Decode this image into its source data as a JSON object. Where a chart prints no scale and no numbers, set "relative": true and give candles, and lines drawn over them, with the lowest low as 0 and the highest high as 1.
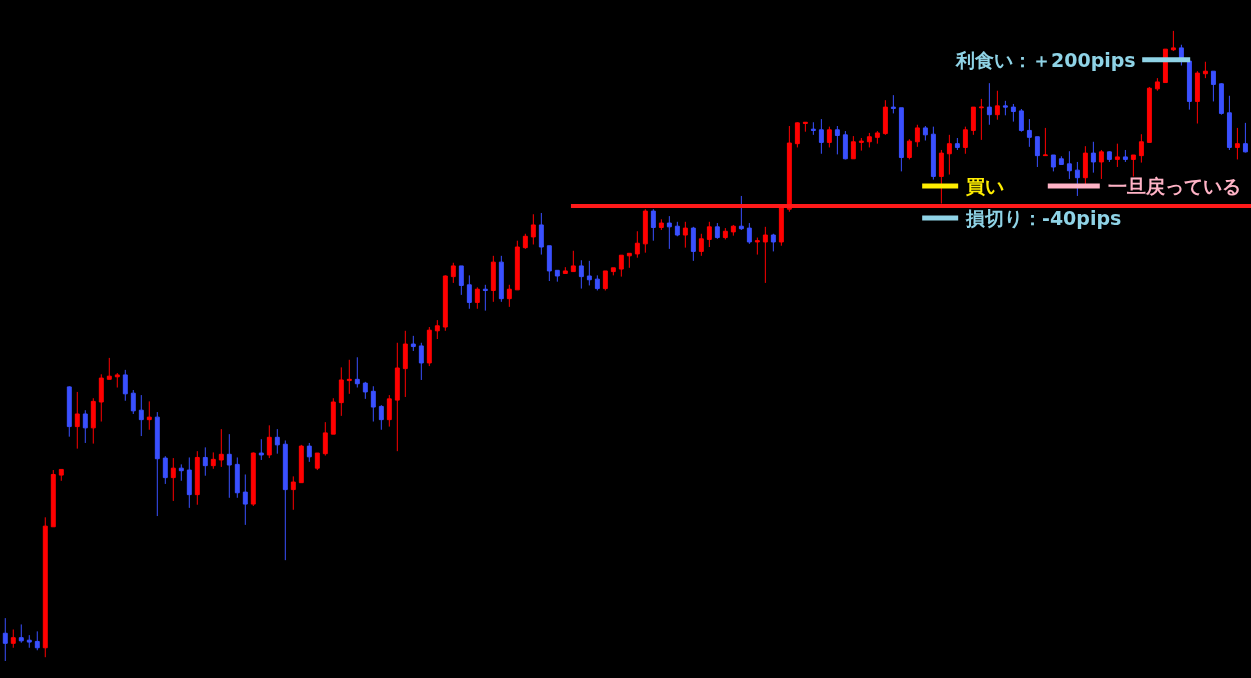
{
  "chart_data": {
    "type": "candlestick",
    "relative": true,
    "colors": [
      "#3a50ff",
      "#ff0000",
      "#3a50ff",
      "#3a50ff",
      "#3a50ff",
      "#ff0000",
      "#ff0000",
      "#ff0000",
      "#3a50ff",
      "#ff0000",
      "#3a50ff",
      "#ff0000",
      "#ff0000",
      "#ff0000",
      "#ff0000",
      "#3a50ff",
      "#3a50ff",
      "#3a50ff",
      "#ff0000",
      "#3a50ff",
      "#3a50ff",
      "#ff0000",
      "#3a50ff",
      "#3a50ff",
      "#ff0000",
      "#3a50ff",
      "#ff0000",
      "#ff0000",
      "#3a50ff",
      "#3a50ff",
      "#3a50ff",
      "#ff0000",
      "#3a50ff",
      "#ff0000",
      "#3a50ff",
      "#3a50ff",
      "#ff0000",
      "#ff0000",
      "#3a50ff",
      "#ff0000",
      "#ff0000",
      "#ff0000",
      "#ff0000",
      "#ff0000",
      "#3a50ff",
      "#3a50ff",
      "#3a50ff",
      "#3a50ff",
      "#ff0000",
      "#ff0000",
      "#ff0000",
      "#3a50ff",
      "#3a50ff",
      "#ff0000",
      "#ff0000",
      "#ff0000",
      "#ff0000",
      "#3a50ff",
      "#3a50ff",
      "#ff0000",
      "#3a50ff",
      "#ff0000",
      "#3a50ff",
      "#ff0000",
      "#ff0000",
      "#ff0000",
      "#ff0000",
      "#3a50ff",
      "#3a50ff",
      "#3a50ff",
      "#ff0000",
      "#ff0000",
      "#3a50ff",
      "#3a50ff",
      "#3a50ff",
      "#ff0000",
      "#ff0000",
      "#ff0000",
      "#ff0000",
      "#ff0000",
      "#ff0000",
      "#3a50ff",
      "#ff0000",
      "#3a50ff",
      "#3a50ff",
      "#ff0000",
      "#3a50ff",
      "#ff0000",
      "#ff0000",
      "#3a50ff",
      "#ff0000",
      "#ff0000",
      "#3a50ff",
      "#3a50ff",
      "#ff0000",
      "#ff0000",
      "#3a50ff",
      "#ff0000",
      "#ff0000",
      "#ff0000",
      "#ff0000",
      "#3a50ff",
      "#3a50ff",
      "#ff0000",
      "#3a50ff",
      "#3a50ff",
      "#ff0000",
      "#ff0000",
      "#ff0000",
      "#ff0000",
      "#ff0000",
      "#3a50ff",
      "#3a50ff",
      "#ff0000",
      "#ff0000",
      "#3a50ff",
      "#3a50ff",
      "#ff0000",
      "#ff0000",
      "#3a50ff",
      "#ff0000",
      "#ff0000",
      "#ff0000",
      "#3a50ff",
      "#ff0000",
      "#3a50ff",
      "#3a50ff",
      "#3a50ff",
      "#3a50ff",
      "#3a50ff",
      "#ff0000",
      "#3a50ff",
      "#3a50ff",
      "#3a50ff",
      "#3a50ff",
      "#ff0000",
      "#3a50ff",
      "#ff0000",
      "#3a50ff",
      "#ff0000",
      "#3a50ff",
      "#ff0000",
      "#ff0000",
      "#ff0000",
      "#ff0000",
      "#ff0000",
      "#ff0000",
      "#3a50ff",
      "#3a50ff",
      "#ff0000",
      "#ff0000",
      "#3a50ff",
      "#3a50ff",
      "#3a50ff",
      "#ff0000",
      "#3a50ff"
    ],
    "categories": [
      null,
      null,
      null,
      null,
      null,
      null,
      null,
      null,
      null,
      null,
      null,
      null,
      null,
      null,
      null,
      null,
      null,
      null,
      null,
      null,
      null,
      null,
      null,
      null,
      null,
      null,
      null,
      null,
      null,
      null,
      null,
      null,
      null,
      null,
      null,
      null,
      null,
      null,
      null,
      null,
      null,
      null,
      null,
      null,
      null,
      null,
      null,
      null,
      null,
      null,
      null,
      null,
      null,
      null,
      null,
      null,
      null,
      null,
      null,
      null,
      null,
      null,
      null,
      null,
      null,
      null,
      null,
      null,
      null,
      null,
      null,
      null,
      null,
      null,
      null,
      null,
      null,
      null,
      null,
      null,
      null,
      null,
      null,
      null,
      null,
      null,
      null,
      null,
      null,
      null,
      null,
      null,
      null,
      null,
      null,
      null,
      null,
      null,
      null,
      null,
      null,
      null,
      null,
      null,
      null,
      null,
      null,
      null,
      null,
      null,
      null,
      null,
      null,
      null,
      null,
      null,
      null,
      null,
      null,
      null,
      null,
      null,
      null,
      null,
      null,
      null,
      null,
      null,
      null,
      null,
      null,
      null,
      null,
      null,
      null,
      null,
      null,
      null,
      null,
      null,
      null,
      null,
      null,
      null,
      null,
      null,
      null,
      null,
      null,
      null,
      null,
      null,
      null,
      null,
      null,
      null
    ],
    "ohlc": [
      [
        0.044,
        0.068,
        0,
        0.028
      ],
      [
        0.028,
        0.05,
        0.021,
        0.037
      ],
      [
        0.037,
        0.058,
        0.029,
        0.032
      ],
      [
        0.033,
        0.041,
        0.021,
        0.03
      ],
      [
        0.031,
        0.047,
        0.017,
        0.021
      ],
      [
        0.021,
        0.228,
        0.006,
        0.214
      ],
      [
        0.213,
        0.303,
        0.213,
        0.296
      ],
      [
        0.295,
        0.304,
        0.286,
        0.304
      ],
      [
        0.435,
        0.436,
        0.356,
        0.372
      ],
      [
        0.372,
        0.427,
        0.337,
        0.392
      ],
      [
        0.392,
        0.398,
        0.346,
        0.37
      ],
      [
        0.37,
        0.417,
        0.345,
        0.412
      ],
      [
        0.411,
        0.455,
        0.38,
        0.449
      ],
      [
        0.447,
        0.481,
        0.447,
        0.452
      ],
      [
        0.451,
        0.457,
        0.434,
        0.454
      ],
      [
        0.454,
        0.462,
        0.413,
        0.424
      ],
      [
        0.425,
        0.43,
        0.392,
        0.397
      ],
      [
        0.398,
        0.422,
        0.357,
        0.383
      ],
      [
        0.383,
        0.412,
        0.367,
        0.387
      ],
      [
        0.387,
        0.395,
        0.23,
        0.321
      ],
      [
        0.322,
        0.325,
        0.281,
        0.291
      ],
      [
        0.291,
        0.322,
        0.254,
        0.306
      ],
      [
        0.306,
        0.312,
        0.286,
        0.302
      ],
      [
        0.303,
        0.323,
        0.243,
        0.264
      ],
      [
        0.264,
        0.333,
        0.248,
        0.323
      ],
      [
        0.323,
        0.339,
        0.294,
        0.31
      ],
      [
        0.31,
        0.331,
        0.305,
        0.32
      ],
      [
        0.319,
        0.368,
        0.308,
        0.328
      ],
      [
        0.328,
        0.36,
        0.259,
        0.311
      ],
      [
        0.312,
        0.323,
        0.259,
        0.267
      ],
      [
        0.268,
        0.296,
        0.216,
        0.249
      ],
      [
        0.249,
        0.331,
        0.246,
        0.33
      ],
      [
        0.33,
        0.352,
        0.319,
        0.327
      ],
      [
        0.327,
        0.374,
        0.322,
        0.355
      ],
      [
        0.355,
        0.368,
        0.329,
        0.343
      ],
      [
        0.344,
        0.35,
        0.16,
        0.272
      ],
      [
        0.272,
        0.293,
        0.24,
        0.284
      ],
      [
        0.283,
        0.343,
        0.283,
        0.341
      ],
      [
        0.341,
        0.346,
        0.316,
        0.324
      ],
      [
        0.306,
        0.33,
        0.303,
        0.33
      ],
      [
        0.329,
        0.379,
        0.326,
        0.362
      ],
      [
        0.36,
        0.417,
        0.36,
        0.411
      ],
      [
        0.41,
        0.466,
        0.389,
        0.446
      ],
      [
        0.445,
        0.478,
        0.424,
        0.447
      ],
      [
        0.447,
        0.482,
        0.434,
        0.44
      ],
      [
        0.441,
        0.443,
        0.416,
        0.427
      ],
      [
        0.428,
        0.436,
        0.38,
        0.403
      ],
      [
        0.404,
        0.406,
        0.367,
        0.383
      ],
      [
        0.383,
        0.422,
        0.372,
        0.416
      ],
      [
        0.414,
        0.505,
        0.333,
        0.465
      ],
      [
        0.464,
        0.524,
        0.419,
        0.503
      ],
      [
        0.503,
        0.516,
        0.492,
        0.499
      ],
      [
        0.5,
        0.505,
        0.446,
        0.473
      ],
      [
        0.473,
        0.53,
        0.468,
        0.525
      ],
      [
        0.524,
        0.541,
        0.511,
        0.532
      ],
      [
        0.53,
        0.612,
        0.524,
        0.611
      ],
      [
        0.61,
        0.632,
        0.6,
        0.627
      ],
      [
        0.627,
        0.627,
        0.581,
        0.596
      ],
      [
        0.597,
        0.612,
        0.559,
        0.569
      ],
      [
        0.569,
        0.593,
        0.559,
        0.59
      ],
      [
        0.59,
        0.597,
        0.556,
        0.588
      ],
      [
        0.588,
        0.643,
        0.57,
        0.633
      ],
      [
        0.633,
        0.643,
        0.57,
        0.575
      ],
      [
        0.575,
        0.597,
        0.562,
        0.59
      ],
      [
        0.589,
        0.667,
        0.589,
        0.657
      ],
      [
        0.656,
        0.678,
        0.654,
        0.674
      ],
      [
        0.673,
        0.709,
        0.661,
        0.692
      ],
      [
        0.692,
        0.711,
        0.645,
        0.657
      ],
      [
        0.659,
        0.659,
        0.603,
        0.619
      ],
      [
        0.62,
        0.62,
        0.602,
        0.611
      ],
      [
        0.615,
        0.625,
        0.615,
        0.619
      ],
      [
        0.618,
        0.651,
        0.618,
        0.627
      ],
      [
        0.627,
        0.636,
        0.591,
        0.61
      ],
      [
        0.611,
        0.635,
        0.596,
        0.605
      ],
      [
        0.606,
        0.612,
        0.588,
        0.591
      ],
      [
        0.591,
        0.619,
        0.588,
        0.619
      ],
      [
        0.618,
        0.624,
        0.612,
        0.624
      ],
      [
        0.622,
        0.644,
        0.61,
        0.644
      ],
      [
        0.643,
        0.647,
        0.624,
        0.647
      ],
      [
        0.646,
        0.682,
        0.64,
        0.663
      ],
      [
        0.662,
        0.717,
        0.648,
        0.714
      ],
      [
        0.714,
        0.717,
        0.667,
        0.688
      ],
      [
        0.688,
        0.701,
        0.684,
        0.695
      ],
      [
        0.695,
        0.706,
        0.654,
        0.689
      ],
      [
        0.69,
        0.697,
        0.674,
        0.676
      ],
      [
        0.676,
        0.697,
        0.656,
        0.687
      ],
      [
        0.687,
        0.689,
        0.635,
        0.65
      ],
      [
        0.65,
        0.678,
        0.643,
        0.67
      ],
      [
        0.669,
        0.697,
        0.657,
        0.689
      ],
      [
        0.689,
        0.695,
        0.67,
        0.672
      ],
      [
        0.672,
        0.687,
        0.669,
        0.682
      ],
      [
        0.681,
        0.692,
        0.675,
        0.69
      ],
      [
        0.69,
        0.738,
        0.684,
        0.686
      ],
      [
        0.687,
        0.695,
        0.662,
        0.665
      ],
      [
        0.665,
        0.672,
        0.645,
        0.667
      ],
      [
        0.665,
        0.689,
        0.6,
        0.676
      ],
      [
        0.676,
        0.678,
        0.65,
        0.665
      ],
      [
        0.665,
        0.719,
        0.659,
        0.719
      ],
      [
        0.717,
        0.849,
        0.713,
        0.822
      ],
      [
        0.821,
        0.855,
        0.815,
        0.854
      ],
      [
        0.853,
        0.855,
        0.84,
        0.855
      ],
      [
        0.844,
        0.855,
        0.835,
        0.842
      ],
      [
        0.843,
        0.86,
        0.805,
        0.823
      ],
      [
        0.823,
        0.848,
        0.815,
        0.843
      ],
      [
        0.843,
        0.849,
        0.804,
        0.834
      ],
      [
        0.835,
        0.841,
        0.796,
        0.797
      ],
      [
        0.797,
        0.833,
        0.797,
        0.824
      ],
      [
        0.823,
        0.83,
        0.81,
        0.825
      ],
      [
        0.824,
        0.838,
        0.815,
        0.832
      ],
      [
        0.831,
        0.841,
        0.821,
        0.838
      ],
      [
        0.837,
        0.89,
        0.835,
        0.879
      ],
      [
        0.879,
        0.898,
        0.869,
        0.877
      ],
      [
        0.878,
        0.878,
        0.777,
        0.799
      ],
      [
        0.799,
        0.828,
        0.796,
        0.825
      ],
      [
        0.824,
        0.851,
        0.816,
        0.846
      ],
      [
        0.846,
        0.849,
        0.826,
        0.835
      ],
      [
        0.836,
        0.848,
        0.764,
        0.769
      ],
      [
        0.769,
        0.811,
        0.726,
        0.806
      ],
      [
        0.805,
        0.835,
        0.772,
        0.821
      ],
      [
        0.821,
        0.83,
        0.811,
        0.815
      ],
      [
        0.815,
        0.848,
        0.805,
        0.843
      ],
      [
        0.842,
        0.879,
        0.835,
        0.879
      ],
      [
        0.878,
        0.892,
        0.827,
        0.879
      ],
      [
        0.879,
        0.917,
        0.851,
        0.867
      ],
      [
        0.867,
        0.905,
        0.859,
        0.881
      ],
      [
        0.881,
        0.889,
        0.866,
        0.879
      ],
      [
        0.879,
        0.884,
        0.856,
        0.872
      ],
      [
        0.873,
        0.876,
        0.84,
        0.842
      ],
      [
        0.842,
        0.86,
        0.816,
        0.831
      ],
      [
        0.832,
        0.832,
        0.784,
        0.802
      ],
      [
        0.802,
        0.846,
        0.802,
        0.803
      ],
      [
        0.803,
        0.803,
        0.777,
        0.784
      ],
      [
        0.797,
        0.801,
        0.788,
        0.788
      ],
      [
        0.789,
        0.809,
        0.765,
        0.778
      ],
      [
        0.779,
        0.792,
        0.738,
        0.767
      ],
      [
        0.767,
        0.817,
        0.757,
        0.806
      ],
      [
        0.806,
        0.824,
        0.775,
        0.792
      ],
      [
        0.792,
        0.811,
        0.765,
        0.808
      ],
      [
        0.808,
        0.809,
        0.792,
        0.796
      ],
      [
        0.796,
        0.821,
        0.784,
        0.8
      ],
      [
        0.8,
        0.811,
        0.792,
        0.796
      ],
      [
        0.796,
        0.803,
        0.769,
        0.803
      ],
      [
        0.802,
        0.836,
        0.791,
        0.824
      ],
      [
        0.823,
        0.911,
        0.823,
        0.909
      ],
      [
        0.908,
        0.925,
        0.905,
        0.919
      ],
      [
        0.918,
        0.971,
        0.918,
        0.971
      ],
      [
        0.97,
        1,
        0.968,
        0.973
      ],
      [
        0.973,
        0.978,
        0.945,
        0.956
      ],
      [
        0.952,
        0.952,
        0.875,
        0.888
      ],
      [
        0.888,
        0.936,
        0.853,
        0.933
      ],
      [
        0.932,
        0.951,
        0.925,
        0.936
      ],
      [
        0.936,
        0.936,
        0.888,
        0.915
      ],
      [
        0.916,
        0.917,
        0.867,
        0.869
      ],
      [
        0.87,
        0.897,
        0.811,
        0.815
      ],
      [
        0.815,
        0.846,
        0.796,
        0.821
      ],
      [
        0.821,
        0.854,
        0.807,
        0.808
      ]
    ],
    "ref_lines": [
      {
        "axis": "y",
        "value": 0.722,
        "color": "#ff1a1a"
      },
      {
        "axis": "y",
        "value": 0.954,
        "label": "利食い：＋200pips",
        "color": "#8fd3e6"
      },
      {
        "axis": "y",
        "value": 0.754,
        "label": "買い",
        "color": "#ffee00"
      },
      {
        "axis": "y",
        "value": 0.754,
        "label": "一旦戻っている",
        "color": "#ffb3c6"
      },
      {
        "axis": "y",
        "value": 0.703,
        "label": "損切り：-40pips",
        "color": "#8fd3e6"
      }
    ]
  }
}
